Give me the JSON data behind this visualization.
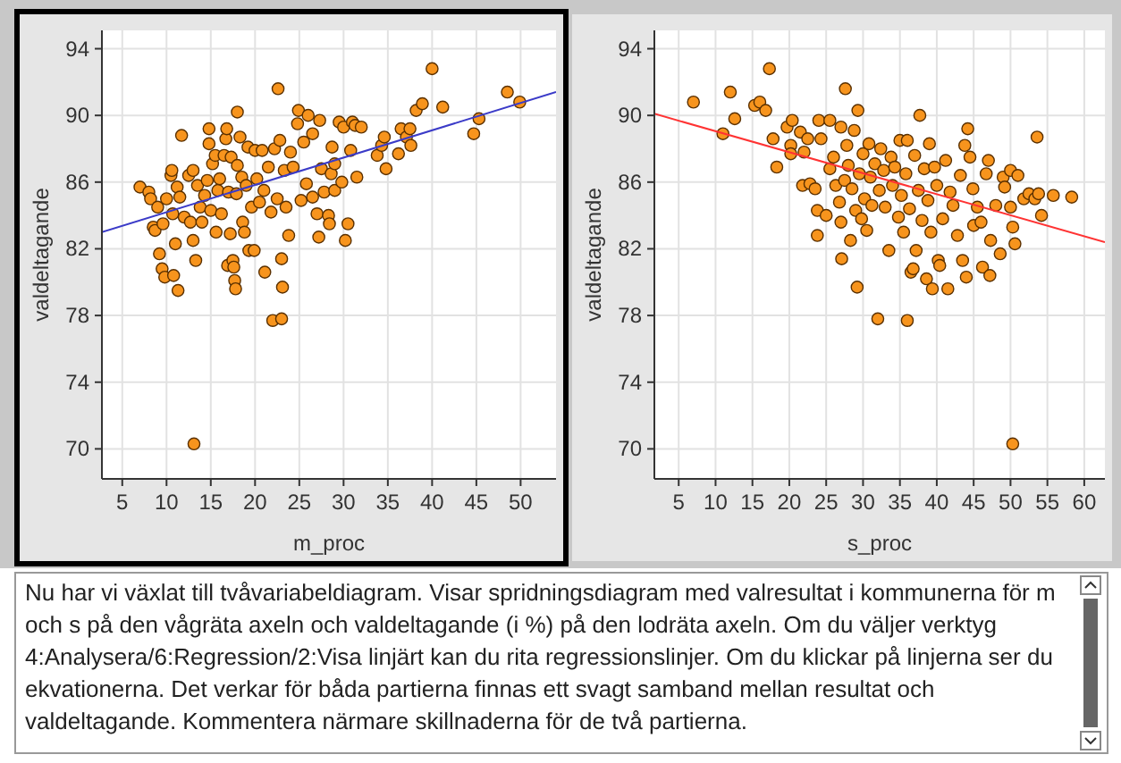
{
  "chart_data": [
    {
      "type": "scatter",
      "xlabel": "m_proc",
      "ylabel": "valdeltagande",
      "xlim": [
        2.7,
        54
      ],
      "ylim": [
        68.2,
        95.1
      ],
      "xticks": [
        5,
        10,
        15,
        20,
        25,
        30,
        35,
        40,
        45,
        50
      ],
      "yticks": [
        70,
        74,
        78,
        82,
        86,
        90,
        94
      ],
      "grid": true,
      "series": [
        {
          "type": "scatter",
          "marker": "circle",
          "color": "#f7941d",
          "x": [
            7,
            8,
            8.2,
            8.5,
            8.7,
            9,
            9.2,
            9.5,
            9.6,
            9.8,
            10,
            10.5,
            10.6,
            10.7,
            10.8,
            11,
            11.3,
            11.2,
            11.5,
            11.7,
            12,
            12.5,
            12.7,
            13,
            13,
            13.1,
            13.3,
            13.5,
            13.8,
            14,
            14.3,
            14.6,
            14.8,
            14.8,
            15,
            15.2,
            15.5,
            15.6,
            15.8,
            16,
            16.2,
            16.5,
            16.7,
            16.8,
            16.9,
            17,
            17.2,
            17.3,
            17.5,
            17.6,
            17.7,
            17.8,
            17.9,
            18,
            18,
            18.3,
            18.5,
            18.6,
            18.8,
            19,
            19.2,
            19.3,
            19.6,
            19.9,
            20,
            20.2,
            20.5,
            20.8,
            21,
            21.1,
            21.5,
            21.8,
            22,
            22.2,
            22.5,
            22.6,
            22.8,
            23,
            23,
            23.1,
            23.3,
            23.5,
            23.8,
            24,
            24.3,
            24.8,
            24.9,
            25.2,
            25.5,
            25.8,
            26,
            26.5,
            26.5,
            27,
            27.2,
            27.3,
            27.5,
            27.8,
            28.3,
            28.4,
            28.6,
            28.7,
            29,
            29,
            29.5,
            29.8,
            30,
            30.2,
            30.5,
            30.8,
            31,
            31.3,
            31.5,
            32,
            33.8,
            34.3,
            34.6,
            34.8,
            36.2,
            36.5,
            37.1,
            37.5,
            37.6,
            38.2,
            38.9,
            40,
            41.2,
            44.7,
            45.3,
            48.5,
            49.9
          ],
          "values": [
            85.7,
            85.4,
            85,
            83.3,
            83.1,
            84.5,
            81.7,
            80.8,
            83.5,
            80.3,
            85,
            86.4,
            86.7,
            84.1,
            80.4,
            82.3,
            79.5,
            85.7,
            85.1,
            88.8,
            83.9,
            86.4,
            83.6,
            86.7,
            82.5,
            70.3,
            81.3,
            85.8,
            84.5,
            83.6,
            85.2,
            86.1,
            89.2,
            88.3,
            84.3,
            87.1,
            87.6,
            83,
            85.5,
            86.2,
            84.1,
            87.6,
            88.6,
            89.2,
            81,
            85.4,
            82.9,
            87.5,
            81.3,
            80.9,
            80.1,
            79.6,
            85.3,
            90.2,
            87,
            88.7,
            86.3,
            83.6,
            83,
            85.8,
            88.1,
            81.9,
            84.5,
            81.9,
            87.9,
            86.2,
            84.8,
            87.9,
            85.5,
            80.6,
            86.9,
            84.2,
            77.7,
            88,
            85,
            91.6,
            88.5,
            77.8,
            81.4,
            79.7,
            86.7,
            84.5,
            82.8,
            87.8,
            86.9,
            89.5,
            90.3,
            84.9,
            88.4,
            85.9,
            90,
            88.9,
            85.1,
            84.1,
            82.7,
            89.7,
            86.8,
            85.4,
            84,
            83.5,
            86.5,
            88.1,
            87.1,
            85.5,
            89.6,
            86,
            89.3,
            82.5,
            83.5,
            87.9,
            89.6,
            89.4,
            86.3,
            89.3,
            87.6,
            88.2,
            88.7,
            86.8,
            87.7,
            89.2,
            88.7,
            89.2,
            88.2,
            90.3,
            90.7,
            92.8,
            90.5,
            88.9,
            89.8,
            91.4,
            90.8
          ]
        },
        {
          "type": "line",
          "marker": "none",
          "color": "#3b3bc8",
          "x": [
            2.7,
            54
          ],
          "values": [
            83.0,
            91.4
          ]
        }
      ]
    },
    {
      "type": "scatter",
      "xlabel": "s_proc",
      "ylabel": "valdeltagande",
      "xlim": [
        1.7,
        62.8
      ],
      "ylim": [
        68.2,
        95.1
      ],
      "xticks": [
        5,
        10,
        15,
        20,
        25,
        30,
        35,
        40,
        45,
        50,
        55,
        60
      ],
      "yticks": [
        70,
        74,
        78,
        82,
        86,
        90,
        94
      ],
      "grid": true,
      "series": [
        {
          "type": "scatter",
          "marker": "circle",
          "color": "#f7941d",
          "x": [
            7,
            11,
            12,
            12.6,
            15.3,
            16,
            16.8,
            17.3,
            17.8,
            18.3,
            19.7,
            20.2,
            20.4,
            20.2,
            21.5,
            21.8,
            22,
            22.5,
            22.8,
            23.5,
            23.8,
            23.8,
            24,
            24.3,
            25,
            25.5,
            25.5,
            26,
            26.3,
            26.8,
            27,
            27,
            27.1,
            27.5,
            27.6,
            27.8,
            28,
            28.3,
            28.5,
            28.8,
            29,
            29.2,
            29.3,
            29.5,
            29.8,
            30,
            30.2,
            30.5,
            30.8,
            31,
            31.2,
            31.6,
            32,
            32.2,
            32.4,
            32.8,
            33,
            33.5,
            33.8,
            34,
            34.3,
            34.8,
            35,
            35.2,
            35.5,
            35.8,
            36,
            36,
            36.3,
            36.5,
            36.8,
            37,
            37.2,
            37.5,
            37.7,
            38,
            38.3,
            38.6,
            38.8,
            39,
            39.2,
            39.4,
            39.7,
            40,
            40.2,
            40.4,
            40.8,
            41.2,
            41.5,
            41.8,
            42.2,
            42.8,
            43.2,
            43.5,
            43.8,
            44,
            44.2,
            44.5,
            44.9,
            45,
            45.5,
            46,
            46.2,
            46.7,
            47,
            47.2,
            47.3,
            48,
            48.6,
            49,
            49.2,
            50,
            50,
            50.3,
            50.3,
            50.6,
            51,
            51.8,
            52.5,
            53.3,
            53.6,
            53.8,
            54.2,
            55.8,
            58.3
          ],
          "values": [
            90.8,
            88.9,
            91.4,
            89.8,
            90.6,
            90.8,
            90.3,
            92.8,
            88.6,
            86.9,
            89.3,
            88.2,
            89.7,
            87.7,
            89,
            85.8,
            87.8,
            88.6,
            85.9,
            85.6,
            84.3,
            82.8,
            89.7,
            88.6,
            84,
            86.8,
            89.7,
            87.5,
            85.8,
            84.8,
            89.3,
            83.6,
            81.4,
            86.1,
            91.6,
            88.2,
            87,
            82.5,
            85.6,
            89.1,
            84.3,
            79.7,
            90.3,
            86.5,
            83.8,
            87.7,
            85,
            83.1,
            88.3,
            86.3,
            84.6,
            87.1,
            77.8,
            85.5,
            88,
            86.7,
            84.5,
            81.9,
            87.5,
            85.8,
            86.9,
            83.9,
            88.5,
            85.2,
            83,
            86.5,
            77.7,
            88.5,
            84.4,
            80.6,
            80.8,
            87.6,
            81.9,
            85.5,
            90,
            83.7,
            86.8,
            80.2,
            84.9,
            88.3,
            83,
            79.6,
            86.9,
            85.8,
            81.3,
            81,
            83.8,
            87.3,
            79.6,
            85.4,
            84.6,
            82.8,
            86.4,
            81.3,
            88.2,
            80.3,
            89.2,
            87.5,
            85.6,
            83.4,
            84.5,
            83.6,
            80.9,
            86.5,
            87.3,
            80.4,
            82.5,
            84.6,
            81.7,
            86.3,
            85.7,
            84.5,
            86.7,
            83.3,
            70.3,
            82.3,
            86.4,
            85,
            85.3,
            85,
            88.7,
            85.3,
            84,
            85.2,
            85.1
          ]
        },
        {
          "type": "line",
          "marker": "none",
          "color": "#ff3333",
          "x": [
            1.7,
            62.8
          ],
          "values": [
            90.1,
            82.4
          ]
        }
      ]
    },
    {
      "type": "other",
      "annotations": [
        "Nu har vi växlat till tvåvariabeldiagram. Visar spridningsdiagram med valresultat i kommunerna för m och s på den vågräta axeln och valdeltagande (i %) på den lodräta axeln. Om du väljer verktyg 4:Analysera/6:Regression/2:Visa linjärt kan du rita regressionslinjer. Om du klickar på linjerna ser du ekvationerna. Det verkar för båda partierna finnas ett svagt samband mellan resultat och valdeltagande. Kommentera närmare skillnaderna för de två partierna."
      ]
    }
  ]
}
